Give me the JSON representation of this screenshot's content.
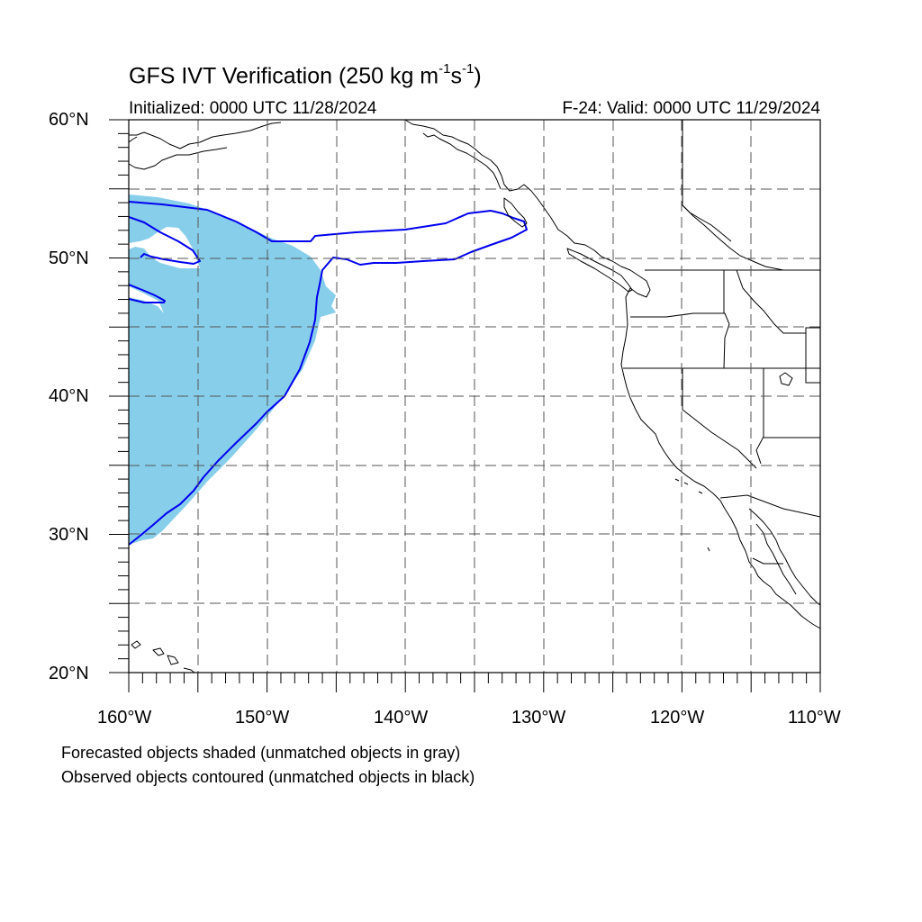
{
  "header": {
    "title_main": "GFS IVT Verification (250 kg m",
    "title_exp1": "-1",
    "title_mid": "s",
    "title_exp2": "-1",
    "title_end": ")",
    "init_text": "Initialized: 0000 UTC 11/28/2024",
    "valid_text": "F-24: Valid: 0000 UTC 11/29/2024"
  },
  "axes": {
    "lat_labels": [
      "60°N",
      "50°N",
      "40°N",
      "30°N",
      "20°N"
    ],
    "lon_labels": [
      "160°W",
      "150°W",
      "140°W",
      "130°W",
      "120°W",
      "110°W"
    ],
    "lat_range": [
      20,
      60
    ],
    "lon_range": [
      -160,
      -110
    ],
    "gridlines": "dashed every 5°"
  },
  "legend": {
    "line1": "Forecasted objects shaded (unmatched objects in gray)",
    "line2": "Observed objects contoured (unmatched objects in black)"
  },
  "colors": {
    "forecast_fill": "#87ceeb",
    "observed_contour": "#0000ee",
    "coastline": "#000000",
    "grid": "#555555"
  }
}
